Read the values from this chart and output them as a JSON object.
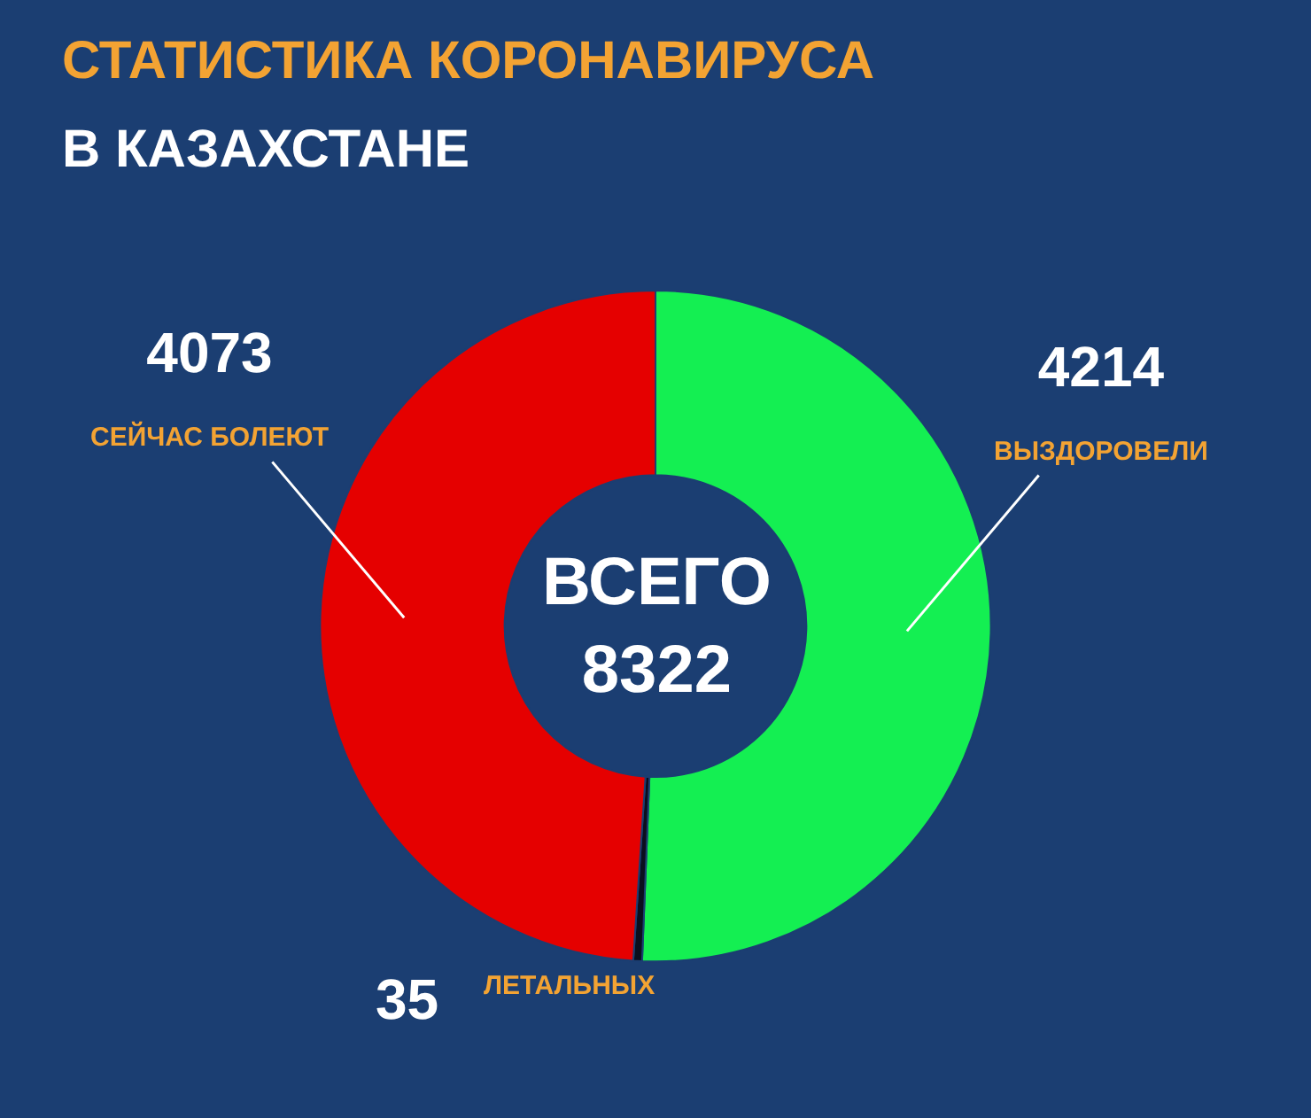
{
  "chart_data": {
    "type": "donut",
    "title": "СТАТИСТИКА КОРОНАВИРУСА",
    "subtitle": "В КАЗАХСТАНЕ",
    "categories": [
      "ВЫЗДОРОВЕЛИ",
      "ЛЕТАЛЬНЫХ",
      "СЕЙЧАС БОЛЕЮТ"
    ],
    "values": [
      4214,
      35,
      4073
    ],
    "colors": [
      "#14ef52",
      "#0b0f1e",
      "#e50000"
    ],
    "data_labels": true,
    "annotations": [
      "ВСЕГО\n8322"
    ],
    "legend": false
  }
}
